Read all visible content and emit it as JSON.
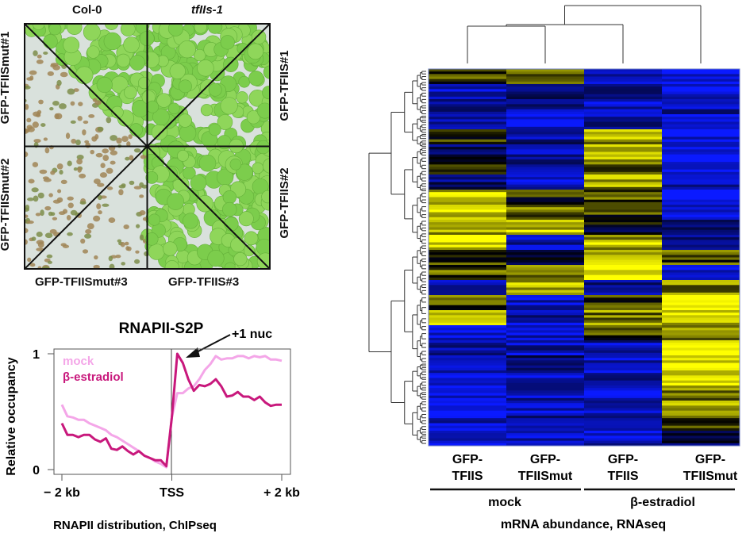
{
  "figure": {
    "panel_a": {
      "col_headers": [
        "Col-0",
        "tfIIs-1"
      ],
      "left_labels": [
        "GFP-TFIISmut#1",
        "GFP-TFIISmut#2"
      ],
      "right_labels": [
        "GFP-TFIIS#1",
        "GFP-TFIIS#2"
      ],
      "bottom_labels": [
        "GFP-TFIISmut#3",
        "GFP-TFIIS#3"
      ],
      "image_description": "Seedling plate divided into 8 triangular sectors; left sectors show pale/brown seedlings, right sectors show green seedlings",
      "colors": {
        "green": "#7cc94a",
        "pale": "#d9e1dc",
        "brown": "#a38a5a"
      }
    },
    "panel_b_caption": "RNAPII distribution, ChIPseq",
    "panel_c_caption": "mRNA abundance, RNAseq"
  },
  "chart_data": [
    {
      "type": "line",
      "title": "RNAPII-S2P",
      "xlabel": "",
      "ylabel": "Relative occupancy",
      "x_tick_labels": [
        "− 2 kb",
        "TSS",
        "+ 2 kb"
      ],
      "x_range_kb": [
        -2,
        2
      ],
      "y_tick_labels": [
        "0",
        "1"
      ],
      "ylim": [
        0,
        1
      ],
      "annotation": "+1 nuc",
      "legend": [
        "mock",
        "β-estradiol"
      ],
      "legend_position": "top-left",
      "x": [
        -2.0,
        -1.9,
        -1.8,
        -1.7,
        -1.6,
        -1.5,
        -1.4,
        -1.3,
        -1.2,
        -1.1,
        -1.0,
        -0.9,
        -0.8,
        -0.7,
        -0.6,
        -0.5,
        -0.4,
        -0.3,
        -0.2,
        -0.1,
        0.0,
        0.1,
        0.2,
        0.3,
        0.4,
        0.5,
        0.6,
        0.7,
        0.8,
        0.9,
        1.0,
        1.1,
        1.2,
        1.3,
        1.4,
        1.5,
        1.6,
        1.7,
        1.8,
        1.9,
        2.0
      ],
      "series": [
        {
          "name": "mock",
          "color": "#f4a6e8",
          "values": [
            0.56,
            0.46,
            0.45,
            0.43,
            0.43,
            0.4,
            0.38,
            0.36,
            0.34,
            0.3,
            0.28,
            0.25,
            0.22,
            0.19,
            0.16,
            0.12,
            0.1,
            0.07,
            0.05,
            0.02,
            0.45,
            0.66,
            0.66,
            0.7,
            0.72,
            0.78,
            0.86,
            0.91,
            0.98,
            0.95,
            0.96,
            0.96,
            0.98,
            0.98,
            0.96,
            0.98,
            0.97,
            0.98,
            0.95,
            0.95,
            0.94
          ]
        },
        {
          "name": "β-estradiol",
          "color": "#c8187c",
          "values": [
            0.4,
            0.3,
            0.3,
            0.28,
            0.3,
            0.3,
            0.26,
            0.24,
            0.27,
            0.18,
            0.17,
            0.2,
            0.16,
            0.13,
            0.16,
            0.12,
            0.1,
            0.08,
            0.08,
            0.03,
            0.45,
            1.0,
            0.92,
            0.78,
            0.68,
            0.73,
            0.72,
            0.74,
            0.78,
            0.72,
            0.63,
            0.64,
            0.67,
            0.63,
            0.63,
            0.6,
            0.63,
            0.58,
            0.55,
            0.56,
            0.56
          ]
        }
      ]
    },
    {
      "type": "heatmap",
      "title": "",
      "columns": [
        {
          "label_line1": "GFP-",
          "label_line2": "TFIIS",
          "group": "mock"
        },
        {
          "label_line1": "GFP-",
          "label_line2": "TFIISmut",
          "group": "mock"
        },
        {
          "label_line1": "GFP-",
          "label_line2": "TFIIS",
          "group": "β-estradiol"
        },
        {
          "label_line1": "GFP-",
          "label_line2": "TFIISmut",
          "group": "β-estradiol"
        }
      ],
      "groups": [
        "mock",
        "β-estradiol"
      ],
      "color_scale": {
        "low": "#0a1aff",
        "mid": "#000000",
        "high": "#ffff00"
      },
      "column_dendrogram": "((col1,col2),col3),col4",
      "row_dendrogram": "hierarchical clustering of genes (rows)",
      "row_blocks_description": "Approximate dominant pattern per row block, values in range -1 (blue) to 1 (yellow)",
      "row_blocks": [
        [
          0.2,
          0.3,
          -0.6,
          -0.9
        ],
        [
          -0.7,
          -0.5,
          -0.6,
          -0.8
        ],
        [
          -0.5,
          -0.6,
          -0.8,
          -0.6
        ],
        [
          -0.8,
          -0.7,
          -0.6,
          -0.9
        ],
        [
          0.2,
          -0.6,
          0.6,
          -0.9
        ],
        [
          -0.3,
          -0.6,
          0.8,
          -1.0
        ],
        [
          0.1,
          -0.6,
          0.4,
          -0.9
        ],
        [
          -0.5,
          -0.7,
          0.6,
          -0.6
        ],
        [
          0.8,
          0.1,
          0.3,
          -0.9
        ],
        [
          0.9,
          0.4,
          0.2,
          -0.8
        ],
        [
          0.5,
          0.8,
          -0.1,
          -0.6
        ],
        [
          0.9,
          -0.6,
          0.7,
          -0.5
        ],
        [
          0.2,
          -0.2,
          0.8,
          0.3
        ],
        [
          0.3,
          0.6,
          0.9,
          -0.8
        ],
        [
          -0.6,
          0.7,
          -0.6,
          0.5
        ],
        [
          0.3,
          -0.7,
          0.2,
          0.9
        ],
        [
          0.6,
          -0.7,
          0.5,
          0.7
        ],
        [
          -0.8,
          -0.8,
          0.2,
          0.6
        ],
        [
          -0.6,
          -0.7,
          -0.7,
          1.0
        ],
        [
          -0.7,
          -0.3,
          -0.8,
          0.95
        ],
        [
          -0.8,
          -0.8,
          -0.7,
          0.9
        ],
        [
          -0.8,
          -0.7,
          -0.9,
          0.5
        ],
        [
          -0.9,
          -0.8,
          -0.8,
          0.7
        ],
        [
          -0.8,
          -0.6,
          -0.8,
          0.2
        ],
        [
          -0.9,
          -0.7,
          -0.8,
          -0.3
        ]
      ]
    }
  ]
}
